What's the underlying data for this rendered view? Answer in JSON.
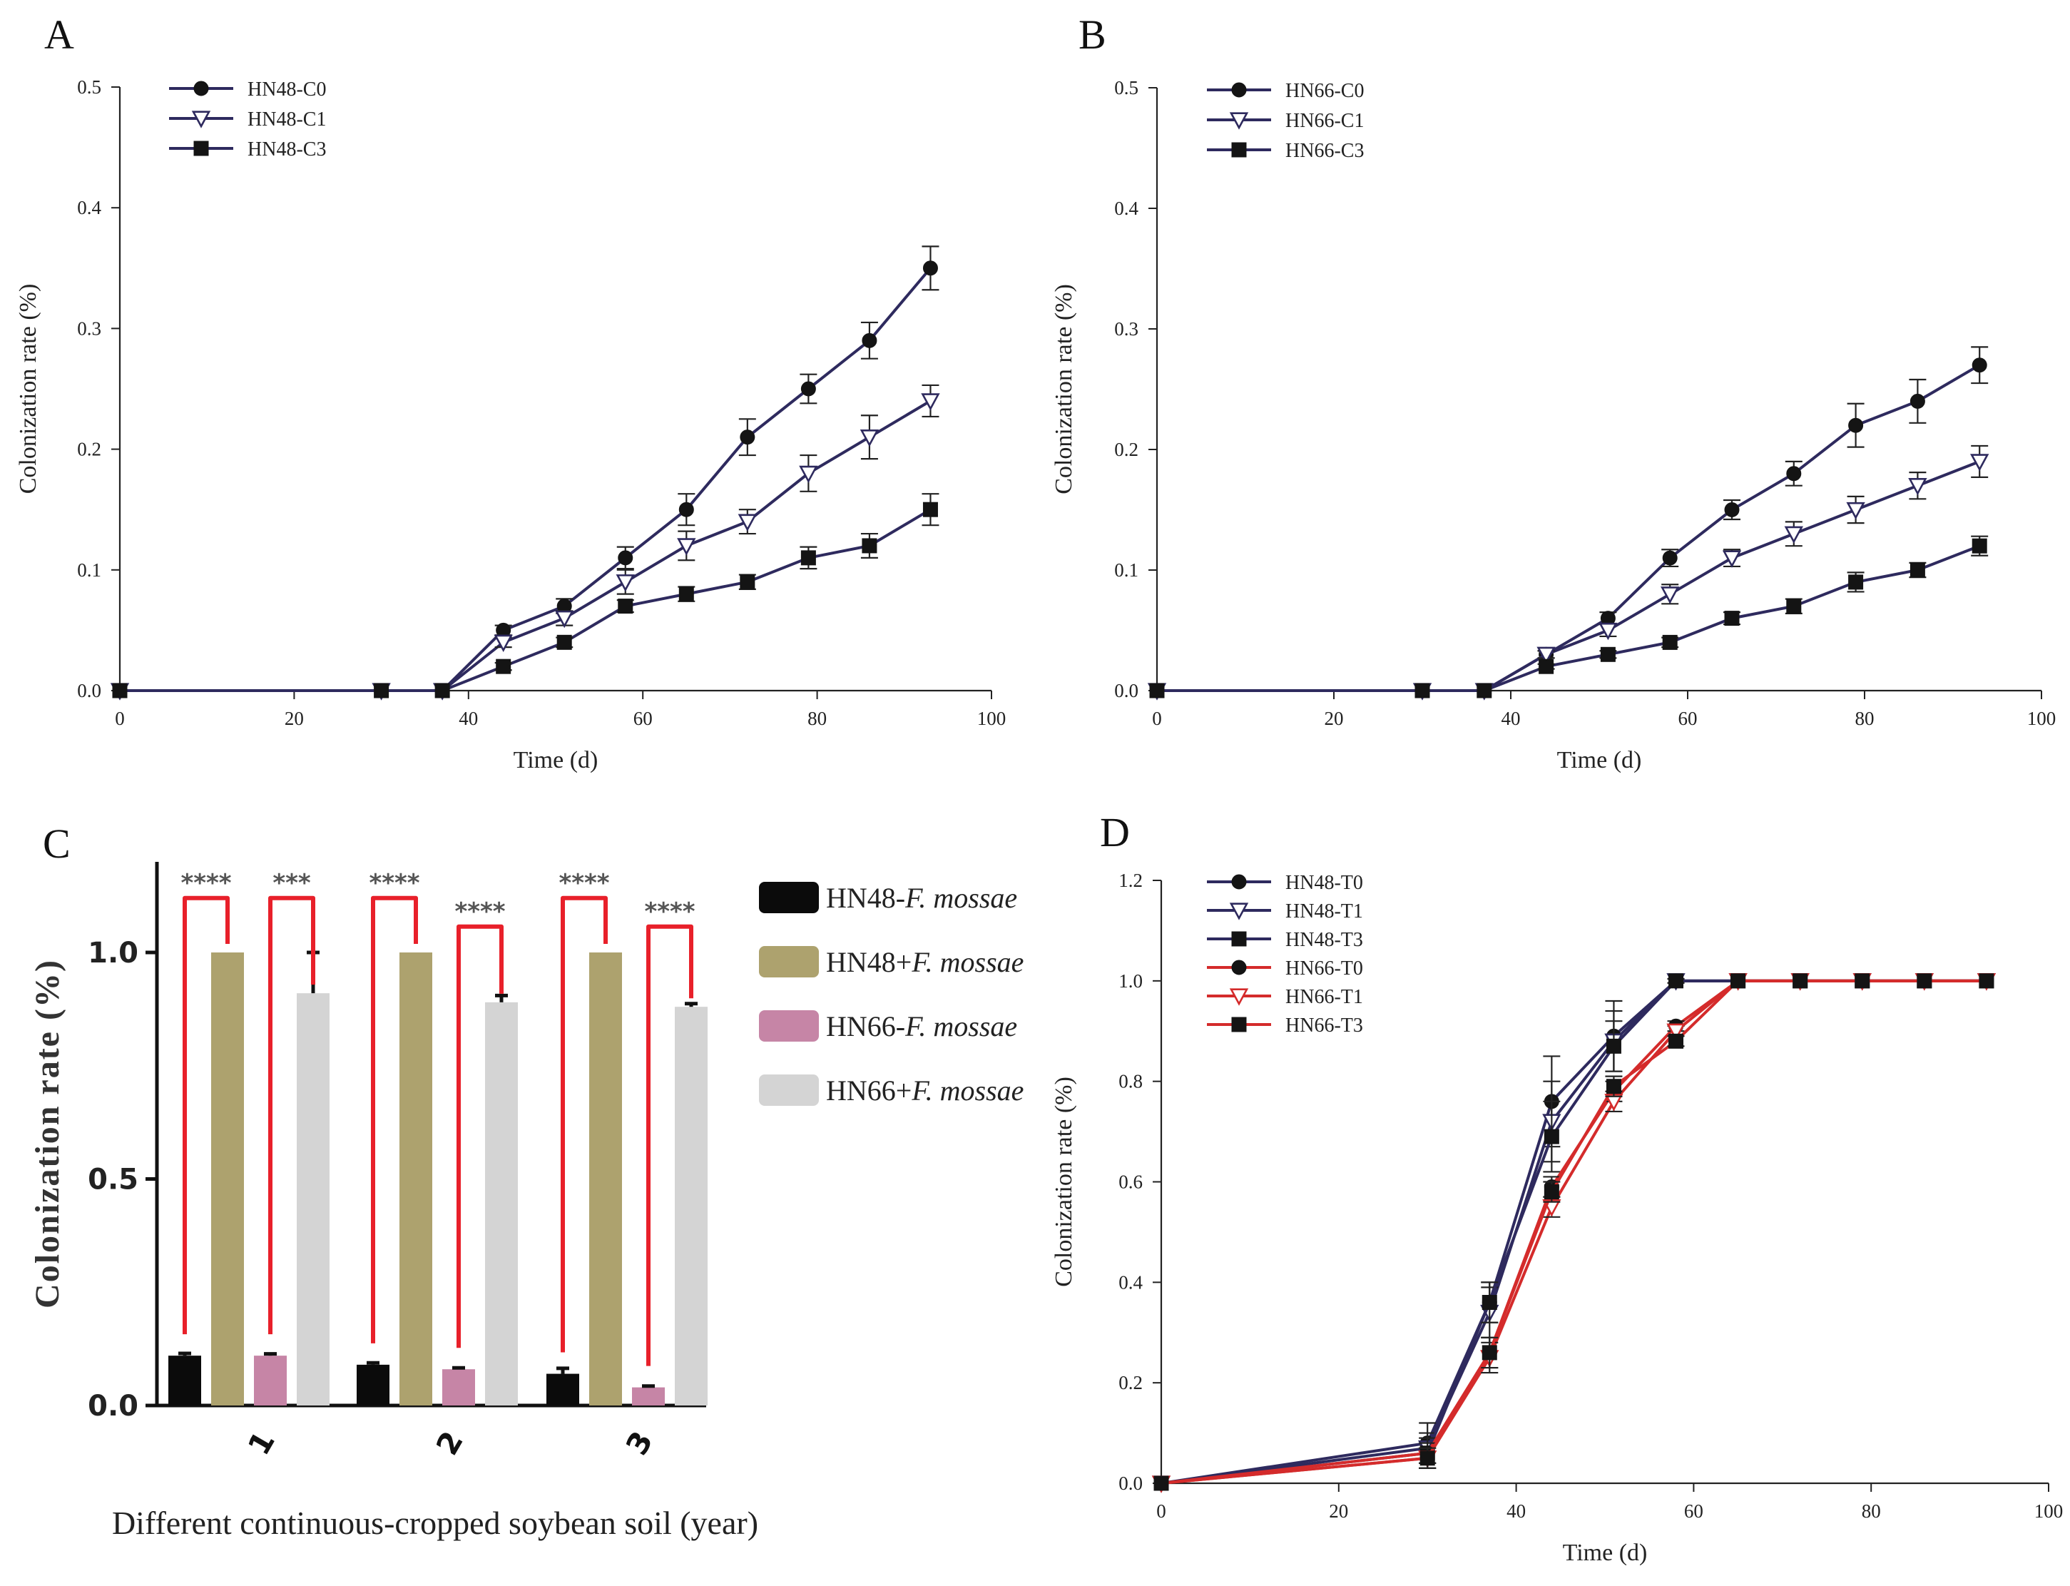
{
  "chart_data": [
    {
      "panel": "A",
      "type": "line",
      "xlabel": "Time (d)",
      "ylabel": "Colonization rate (%)",
      "xlim": [
        0,
        100
      ],
      "ylim": [
        0,
        0.5
      ],
      "x_ticks": [
        0,
        20,
        40,
        60,
        80,
        100
      ],
      "y_ticks": [
        0.0,
        0.1,
        0.2,
        0.3,
        0.4,
        0.5
      ],
      "y_tick_labels": [
        "0.0",
        "0.1",
        "0.2",
        "0.3",
        "0.4",
        "0.5"
      ],
      "legend_position": "top-left",
      "x": [
        0,
        30,
        37,
        44,
        51,
        58,
        65,
        72,
        79,
        86,
        93
      ],
      "series": [
        {
          "name": "HN48-C0",
          "marker": "circle",
          "color": "#2e2a5e",
          "values": [
            0,
            0,
            0,
            0.05,
            0.07,
            0.11,
            0.15,
            0.21,
            0.25,
            0.29,
            0.35
          ],
          "errors": [
            0,
            0,
            0,
            0.004,
            0.006,
            0.009,
            0.013,
            0.015,
            0.012,
            0.015,
            0.018
          ]
        },
        {
          "name": "HN48-C1",
          "marker": "triangle-down",
          "color": "#2e2a5e",
          "values": [
            0,
            0,
            0,
            0.04,
            0.06,
            0.09,
            0.12,
            0.14,
            0.18,
            0.21,
            0.24
          ],
          "errors": [
            0,
            0,
            0,
            0.004,
            0.006,
            0.01,
            0.012,
            0.01,
            0.015,
            0.018,
            0.013
          ]
        },
        {
          "name": "HN48-C3",
          "marker": "square",
          "color": "#2e2a5e",
          "values": [
            0,
            0,
            0,
            0.02,
            0.04,
            0.07,
            0.08,
            0.09,
            0.11,
            0.12,
            0.15
          ],
          "errors": [
            0,
            0,
            0,
            0.003,
            0.004,
            0.005,
            0.006,
            0.006,
            0.009,
            0.01,
            0.013
          ]
        }
      ]
    },
    {
      "panel": "B",
      "type": "line",
      "xlabel": "Time (d)",
      "ylabel": "Colonization rate (%)",
      "xlim": [
        0,
        100
      ],
      "ylim": [
        0,
        0.5
      ],
      "x_ticks": [
        0,
        20,
        40,
        60,
        80,
        100
      ],
      "y_ticks": [
        0.0,
        0.1,
        0.2,
        0.3,
        0.4,
        0.5
      ],
      "y_tick_labels": [
        "0.0",
        "0.1",
        "0.2",
        "0.3",
        "0.4",
        "0.5"
      ],
      "legend_position": "top-left",
      "x": [
        0,
        30,
        37,
        44,
        51,
        58,
        65,
        72,
        79,
        86,
        93
      ],
      "series": [
        {
          "name": "HN66-C0",
          "marker": "circle",
          "color": "#2e2a5e",
          "values": [
            0,
            0,
            0,
            0.03,
            0.06,
            0.11,
            0.15,
            0.18,
            0.22,
            0.24,
            0.27
          ],
          "errors": [
            0,
            0,
            0,
            0.003,
            0.005,
            0.007,
            0.008,
            0.01,
            0.018,
            0.018,
            0.015
          ]
        },
        {
          "name": "HN66-C1",
          "marker": "triangle-down",
          "color": "#2e2a5e",
          "values": [
            0,
            0,
            0,
            0.03,
            0.05,
            0.08,
            0.11,
            0.13,
            0.15,
            0.17,
            0.19
          ],
          "errors": [
            0,
            0,
            0,
            0.003,
            0.005,
            0.008,
            0.007,
            0.01,
            0.011,
            0.011,
            0.013
          ]
        },
        {
          "name": "HN66-C3",
          "marker": "square",
          "color": "#2e2a5e",
          "values": [
            0,
            0,
            0,
            0.02,
            0.03,
            0.04,
            0.06,
            0.07,
            0.09,
            0.1,
            0.12
          ],
          "errors": [
            0,
            0,
            0,
            0.002,
            0.003,
            0.004,
            0.005,
            0.006,
            0.008,
            0.006,
            0.008
          ]
        }
      ]
    },
    {
      "panel": "C",
      "type": "bar",
      "xlabel": "Different continuous-cropped soybean soil (year)",
      "ylabel": "Colonization rate (%)",
      "ylim": [
        0,
        1.2
      ],
      "y_ticks": [
        0.0,
        0.5,
        1.0
      ],
      "y_tick_labels": [
        "0.0",
        "0.5",
        "1.0"
      ],
      "categories": [
        "1",
        "2",
        "3"
      ],
      "legend_position": "right",
      "series": [
        {
          "name_prefix": "HN48-",
          "name_italic": "F. mossae",
          "color": "#0b0b0b",
          "values": [
            0.11,
            0.09,
            0.07
          ],
          "errors": [
            0.005,
            0.004,
            0.012
          ]
        },
        {
          "name_prefix": "HN48+",
          "name_italic": "F. mossae",
          "color": "#ada26e",
          "values": [
            1.0,
            1.0,
            1.0
          ],
          "errors": [
            0,
            0,
            0
          ]
        },
        {
          "name_prefix": "HN66-",
          "name_italic": "F. mossae",
          "color": "#c685a6",
          "values": [
            0.11,
            0.08,
            0.04
          ],
          "errors": [
            0.004,
            0.003,
            0.003
          ]
        },
        {
          "name_prefix": "HN66+",
          "name_italic": "F. mossae",
          "color": "#d4d4d4",
          "values": [
            0.91,
            0.89,
            0.88
          ],
          "errors": [
            0.09,
            0.015,
            0.007
          ]
        }
      ],
      "significance": [
        {
          "category": "1",
          "pair": "HN48",
          "label": "****"
        },
        {
          "category": "1",
          "pair": "HN66",
          "label": "***"
        },
        {
          "category": "2",
          "pair": "HN48",
          "label": "****"
        },
        {
          "category": "2",
          "pair": "HN66",
          "label": "****"
        },
        {
          "category": "3",
          "pair": "HN48",
          "label": "****"
        },
        {
          "category": "3",
          "pair": "HN66",
          "label": "****"
        }
      ]
    },
    {
      "panel": "D",
      "type": "line",
      "xlabel": "Time (d)",
      "ylabel": "Colonization rate (%)",
      "xlim": [
        0,
        100
      ],
      "ylim": [
        0,
        1.2
      ],
      "x_ticks": [
        0,
        20,
        40,
        60,
        80,
        100
      ],
      "y_ticks": [
        0.0,
        0.2,
        0.4,
        0.6,
        0.8,
        1.0,
        1.2
      ],
      "y_tick_labels": [
        "0.0",
        "0.2",
        "0.4",
        "0.6",
        "0.8",
        "1.0",
        "1.2"
      ],
      "legend_position": "top-left",
      "x": [
        0,
        30,
        37,
        44,
        51,
        58,
        65,
        72,
        79,
        86,
        93
      ],
      "series": [
        {
          "name": "HN48-T0",
          "marker": "circle",
          "color": "#2e2a5e",
          "values": [
            0,
            0.08,
            0.36,
            0.76,
            0.89,
            1.0,
            1.0,
            1.0,
            1.0,
            1.0,
            1.0
          ],
          "errors": [
            0,
            0.04,
            0.04,
            0.09,
            0.07,
            0.004,
            0,
            0,
            0,
            0,
            0
          ]
        },
        {
          "name": "HN48-T1",
          "marker": "triangle-down",
          "color": "#2e2a5e",
          "values": [
            0,
            0.07,
            0.34,
            0.72,
            0.88,
            1.0,
            1.0,
            1.0,
            1.0,
            1.0,
            1.0
          ],
          "errors": [
            0,
            0.03,
            0.05,
            0.08,
            0.06,
            0.004,
            0,
            0,
            0,
            0,
            0
          ]
        },
        {
          "name": "HN48-T3",
          "marker": "square",
          "color": "#2e2a5e",
          "values": [
            0,
            0.06,
            0.36,
            0.69,
            0.87,
            1.0,
            1.0,
            1.0,
            1.0,
            1.0,
            1.0
          ],
          "errors": [
            0,
            0.03,
            0.04,
            0.07,
            0.05,
            0.004,
            0,
            0,
            0,
            0,
            0
          ]
        },
        {
          "name": "HN66-T0",
          "marker": "circle",
          "color": "#d42b2b",
          "values": [
            0,
            0.06,
            0.26,
            0.59,
            0.78,
            0.91,
            1.0,
            1.0,
            1.0,
            1.0,
            1.0
          ],
          "errors": [
            0,
            0.02,
            0.03,
            0.02,
            0.02,
            0.01,
            0,
            0,
            0,
            0,
            0
          ]
        },
        {
          "name": "HN66-T1",
          "marker": "triangle-down",
          "color": "#d42b2b",
          "values": [
            0,
            0.05,
            0.25,
            0.55,
            0.76,
            0.9,
            1.0,
            1.0,
            1.0,
            1.0,
            1.0
          ],
          "errors": [
            0,
            0.02,
            0.03,
            0.02,
            0.02,
            0.01,
            0,
            0,
            0,
            0,
            0
          ]
        },
        {
          "name": "HN66-T3",
          "marker": "square",
          "color": "#d42b2b",
          "values": [
            0,
            0.05,
            0.26,
            0.58,
            0.79,
            0.88,
            1.0,
            1.0,
            1.0,
            1.0,
            1.0
          ],
          "errors": [
            0,
            0.02,
            0.03,
            0.02,
            0.02,
            0.01,
            0,
            0,
            0,
            0,
            0
          ]
        }
      ]
    }
  ]
}
